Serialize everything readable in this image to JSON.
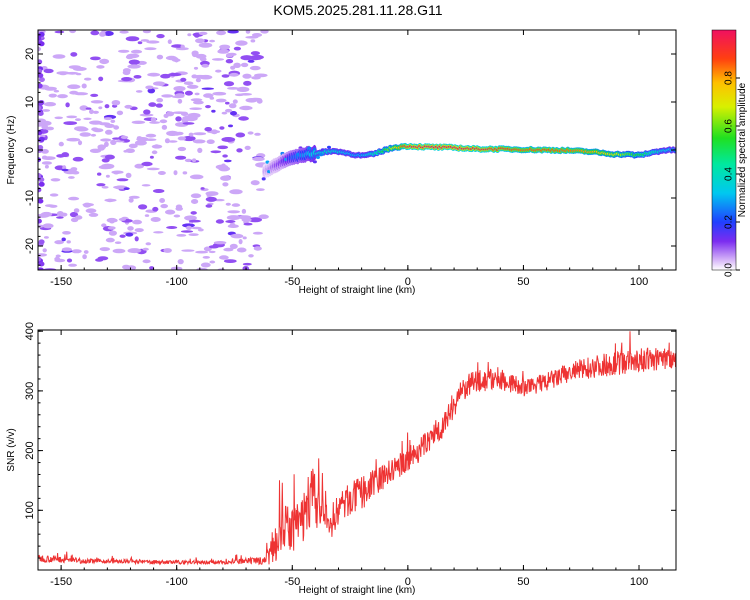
{
  "figure": {
    "title": "KOM5.2025.281.11.28.G11"
  },
  "chart_data": [
    {
      "type": "heatmap",
      "title": "KOM5.2025.281.11.28.G11",
      "xlabel": "Height of straight line (km)",
      "ylabel": "Frequency (Hz)",
      "xlim": [
        -160,
        116
      ],
      "ylim": [
        -25,
        25
      ],
      "x_ticks": [
        -150,
        -100,
        -50,
        0,
        50,
        100
      ],
      "y_ticks": [
        -20,
        -10,
        0,
        10,
        20
      ],
      "colorbar": {
        "label": "Normalized spectral amplitude",
        "range": [
          0,
          1
        ],
        "ticks": [
          0.0,
          0.2,
          0.4,
          0.6,
          0.8
        ]
      },
      "noise_region_x": [
        -160,
        -62
      ],
      "ridge": {
        "x": [
          -62,
          -55,
          -50,
          -45,
          -40,
          -35,
          -30,
          -25,
          -20,
          -15,
          -10,
          -5,
          0,
          10,
          20,
          30,
          40,
          50,
          60,
          70,
          80,
          90,
          95,
          100,
          105,
          110,
          116
        ],
        "freq": [
          -4.5,
          -2.5,
          -1.5,
          -1.0,
          -0.7,
          -0.3,
          -0.3,
          -0.8,
          -1.2,
          -0.9,
          0.0,
          0.6,
          0.8,
          0.6,
          0.5,
          0.2,
          0.2,
          0.1,
          0.0,
          -0.1,
          -0.4,
          -0.9,
          -0.9,
          -1.1,
          -0.6,
          -0.1,
          0.0
        ],
        "amp": [
          0.05,
          0.12,
          0.22,
          0.28,
          0.35,
          0.38,
          0.35,
          0.3,
          0.3,
          0.4,
          0.55,
          0.75,
          0.95,
          1.0,
          0.98,
          0.95,
          0.9,
          0.85,
          0.88,
          0.85,
          0.8,
          0.7,
          0.6,
          0.55,
          0.45,
          0.35,
          0.3
        ]
      }
    },
    {
      "type": "line",
      "xlabel": "Height of straight line (km)",
      "ylabel": "SNR (v/v)",
      "xlim": [
        -160,
        116
      ],
      "ylim": [
        0,
        402
      ],
      "x_ticks": [
        -150,
        -100,
        -50,
        0,
        50,
        100
      ],
      "y_ticks": [
        100,
        200,
        300,
        400
      ],
      "series": [
        {
          "name": "SNR",
          "color": "#ee3333",
          "x": [
            -160,
            -140,
            -120,
            -100,
            -80,
            -62,
            -58,
            -55,
            -50,
            -45,
            -42,
            -38,
            -34,
            -30,
            -25,
            -20,
            -15,
            -10,
            -5,
            0,
            5,
            10,
            15,
            18,
            20,
            22,
            25,
            30,
            40,
            50,
            60,
            70,
            80,
            90,
            100,
            110,
            116
          ],
          "mean": [
            18,
            14,
            13,
            12,
            12,
            14,
            30,
            60,
            55,
            75,
            110,
            90,
            65,
            95,
            110,
            120,
            135,
            150,
            165,
            180,
            195,
            215,
            235,
            255,
            270,
            285,
            300,
            310,
            315,
            300,
            310,
            325,
            335,
            340,
            345,
            348,
            350
          ],
          "noise": [
            8,
            5,
            4,
            4,
            4,
            8,
            40,
            55,
            45,
            55,
            70,
            45,
            35,
            35,
            35,
            35,
            30,
            30,
            25,
            25,
            25,
            25,
            25,
            25,
            25,
            25,
            25,
            25,
            25,
            18,
            20,
            22,
            24,
            25,
            25,
            25,
            25
          ]
        }
      ]
    }
  ]
}
